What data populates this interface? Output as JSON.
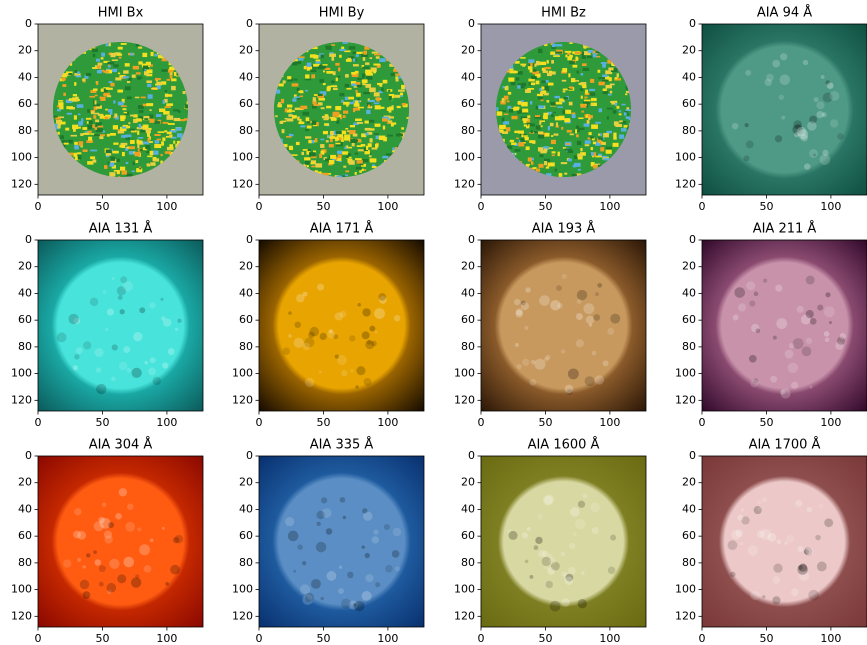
{
  "chart_data": [
    {
      "type": "image",
      "title": "HMI Bx",
      "xlim": [
        0,
        128
      ],
      "ylim": [
        128,
        0
      ],
      "xticks": [
        0,
        50,
        100
      ],
      "yticks": [
        0,
        20,
        40,
        60,
        80,
        100,
        120
      ],
      "background": "#b2b2a2",
      "disk": "#2f9a3a",
      "corona": "#b2b2a2",
      "style": "magnetogram"
    },
    {
      "type": "image",
      "title": "HMI By",
      "xlim": [
        0,
        128
      ],
      "ylim": [
        128,
        0
      ],
      "xticks": [
        0,
        50,
        100
      ],
      "yticks": [
        0,
        20,
        40,
        60,
        80,
        100,
        120
      ],
      "background": "#b2b2a2",
      "disk": "#2f9a3a",
      "corona": "#b2b2a2",
      "style": "magnetogram"
    },
    {
      "type": "image",
      "title": "HMI Bz",
      "xlim": [
        0,
        128
      ],
      "ylim": [
        128,
        0
      ],
      "xticks": [
        0,
        50,
        100
      ],
      "yticks": [
        0,
        20,
        40,
        60,
        80,
        100,
        120
      ],
      "background": "#9a9aaa",
      "disk": "#2f9a3a",
      "corona": "#9a9aaa",
      "style": "magnetogram"
    },
    {
      "type": "image",
      "title": "AIA 94 Å",
      "xlim": [
        0,
        128
      ],
      "ylim": [
        128,
        0
      ],
      "xticks": [
        0,
        50,
        100
      ],
      "yticks": [
        0,
        20,
        40,
        60,
        80,
        100,
        120
      ],
      "background": "#0e4f40",
      "disk": "#4f9a86",
      "corona": "#2a7564",
      "style": "euv"
    },
    {
      "type": "image",
      "title": "AIA 131 Å",
      "xlim": [
        0,
        128
      ],
      "ylim": [
        128,
        0
      ],
      "xticks": [
        0,
        50,
        100
      ],
      "yticks": [
        0,
        20,
        40,
        60,
        80,
        100,
        120
      ],
      "background": "#0b5a5a",
      "disk": "#48e4dc",
      "corona": "#1aa8a4",
      "style": "euv"
    },
    {
      "type": "image",
      "title": "AIA 171 Å",
      "xlim": [
        0,
        128
      ],
      "ylim": [
        128,
        0
      ],
      "xticks": [
        0,
        50,
        100
      ],
      "yticks": [
        0,
        20,
        40,
        60,
        80,
        100,
        120
      ],
      "background": "#140a00",
      "disk": "#e8a400",
      "corona": "#9a6400",
      "style": "euv"
    },
    {
      "type": "image",
      "title": "AIA 193 Å",
      "xlim": [
        0,
        128
      ],
      "ylim": [
        128,
        0
      ],
      "xticks": [
        0,
        50,
        100
      ],
      "yticks": [
        0,
        20,
        40,
        60,
        80,
        100,
        120
      ],
      "background": "#2a1606",
      "disk": "#c8995e",
      "corona": "#8a5a2a",
      "style": "euv"
    },
    {
      "type": "image",
      "title": "AIA 211 Å",
      "xlim": [
        0,
        128
      ],
      "ylim": [
        128,
        0
      ],
      "xticks": [
        0,
        50,
        100
      ],
      "yticks": [
        0,
        20,
        40,
        60,
        80,
        100,
        120
      ],
      "background": "#30082a",
      "disk": "#c892aa",
      "corona": "#8a4a70",
      "style": "euv"
    },
    {
      "type": "image",
      "title": "AIA 304 Å",
      "xlim": [
        0,
        128
      ],
      "ylim": [
        128,
        0
      ],
      "xticks": [
        0,
        50,
        100
      ],
      "yticks": [
        0,
        20,
        40,
        60,
        80,
        100,
        120
      ],
      "background": "#8a0800",
      "disk": "#ff5c12",
      "corona": "#c42800",
      "style": "euv"
    },
    {
      "type": "image",
      "title": "AIA 335 Å",
      "xlim": [
        0,
        128
      ],
      "ylim": [
        128,
        0
      ],
      "xticks": [
        0,
        50,
        100
      ],
      "yticks": [
        0,
        20,
        40,
        60,
        80,
        100,
        120
      ],
      "background": "#08306e",
      "disk": "#5a8ec4",
      "corona": "#1e5a9e",
      "style": "euv"
    },
    {
      "type": "image",
      "title": "AIA 1600 Å",
      "xlim": [
        0,
        128
      ],
      "ylim": [
        128,
        0
      ],
      "xticks": [
        0,
        50,
        100
      ],
      "yticks": [
        0,
        20,
        40,
        60,
        80,
        100,
        120
      ],
      "background": "#6a6a12",
      "disk": "#d8d8a2",
      "corona": "#7e7e22",
      "style": "uv"
    },
    {
      "type": "image",
      "title": "AIA 1700 Å",
      "xlim": [
        0,
        128
      ],
      "ylim": [
        128,
        0
      ],
      "xticks": [
        0,
        50,
        100
      ],
      "yticks": [
        0,
        20,
        40,
        60,
        80,
        100,
        120
      ],
      "background": "#7a3838",
      "disk": "#ecc8c8",
      "corona": "#8e4e4e",
      "style": "uv"
    }
  ]
}
